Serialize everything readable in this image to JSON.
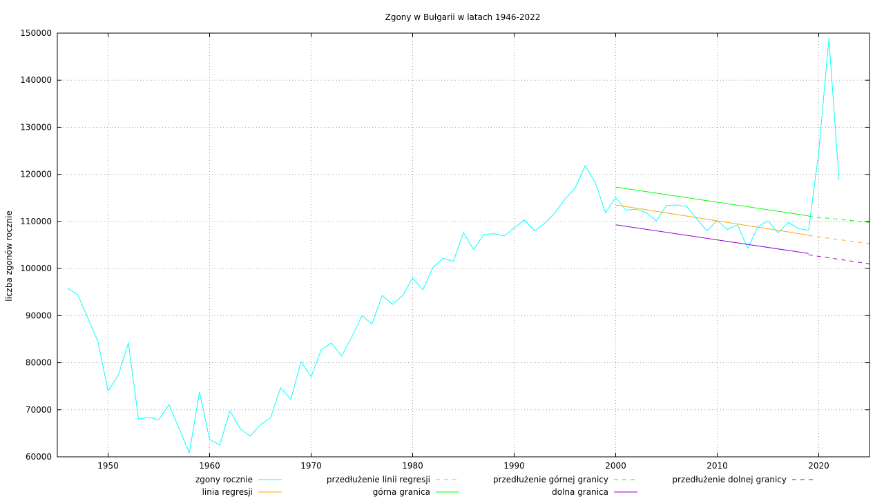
{
  "chart_data": {
    "type": "line",
    "title": "Zgony w Bułgarii w latach 1946-2022",
    "xlabel": "",
    "ylabel": "liczba zgonów rocznie",
    "xlim": [
      1945,
      2025
    ],
    "ylim": [
      60000,
      150000
    ],
    "x_ticks": [
      "1950",
      "1960",
      "1970",
      "1980",
      "1990",
      "2000",
      "2010",
      "2020"
    ],
    "y_ticks": [
      "60000",
      "70000",
      "80000",
      "90000",
      "100000",
      "110000",
      "120000",
      "130000",
      "140000",
      "150000"
    ],
    "grid": true,
    "legend_position": "bottom",
    "series": [
      {
        "name": "zgony rocznie",
        "color": "#00ffff",
        "style": "solid",
        "x": [
          1946,
          1947,
          1948,
          1949,
          1950,
          1951,
          1952,
          1953,
          1954,
          1955,
          1956,
          1957,
          1958,
          1959,
          1960,
          1961,
          1962,
          1963,
          1964,
          1965,
          1966,
          1967,
          1968,
          1969,
          1970,
          1971,
          1972,
          1973,
          1974,
          1975,
          1976,
          1977,
          1978,
          1979,
          1980,
          1981,
          1982,
          1983,
          1984,
          1985,
          1986,
          1987,
          1988,
          1989,
          1990,
          1991,
          1992,
          1993,
          1994,
          1995,
          1996,
          1997,
          1998,
          1999,
          2000,
          2001,
          2002,
          2003,
          2004,
          2005,
          2006,
          2007,
          2008,
          2009,
          2010,
          2011,
          2012,
          2013,
          2014,
          2015,
          2016,
          2017,
          2018,
          2019,
          2020,
          2021,
          2022
        ],
        "y": [
          95800,
          94500,
          89500,
          84500,
          74000,
          77300,
          84200,
          68000,
          68400,
          67900,
          71100,
          66000,
          60800,
          73800,
          63700,
          62500,
          69800,
          66000,
          64400,
          66800,
          68300,
          74700,
          72200,
          80200,
          77000,
          82800,
          84200,
          81400,
          85400,
          90000,
          88200,
          94300,
          92400,
          94200,
          98000,
          95500,
          100200,
          102200,
          101500,
          107600,
          104000,
          107200,
          107400,
          106900,
          108600,
          110300,
          108000,
          109600,
          111800,
          114700,
          117100,
          121900,
          118200,
          111800,
          115100,
          112400,
          112600,
          111900,
          110100,
          113400,
          113500,
          113200,
          110500,
          108000,
          110200,
          108300,
          109300,
          104300,
          108900,
          110100,
          107600,
          109800,
          108500,
          108100,
          124700,
          148900,
          118800
        ]
      },
      {
        "name": "linia regresji",
        "color": "#ffa500",
        "style": "solid",
        "x": [
          2000,
          2019
        ],
        "y": [
          113500,
          107100
        ]
      },
      {
        "name": "przedłużenie linii regresji",
        "color": "#ffa500",
        "style": "dashed",
        "x": [
          2019,
          2025
        ],
        "y": [
          107000,
          105300
        ]
      },
      {
        "name": "górna granica",
        "color": "#00ff00",
        "style": "solid",
        "x": [
          2000,
          2019
        ],
        "y": [
          117300,
          111200
        ]
      },
      {
        "name": "przedłużenie górnej granicy",
        "color": "#00ff00",
        "style": "dashed",
        "x": [
          2019,
          2025
        ],
        "y": [
          111100,
          109800
        ]
      },
      {
        "name": "dolna granica",
        "color": "#9400d3",
        "style": "solid",
        "x": [
          2000,
          2019
        ],
        "y": [
          109300,
          103200
        ]
      },
      {
        "name": "przedłużenie dolnej granicy",
        "color": "#9400d3",
        "style": "dashed",
        "x": [
          2019,
          2025
        ],
        "y": [
          102900,
          101000
        ]
      }
    ]
  }
}
